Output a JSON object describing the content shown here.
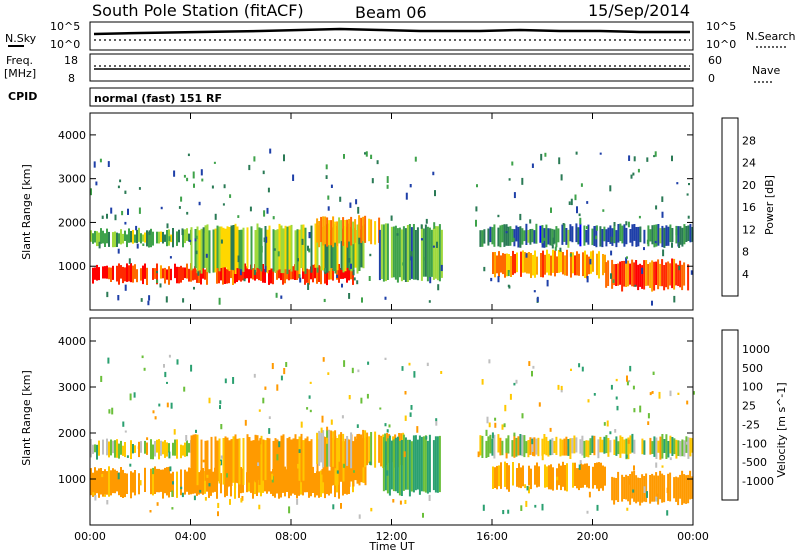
{
  "header": {
    "station": "South Pole Station (fitACF)",
    "beam": "Beam 06",
    "date": "15/Sep/2014"
  },
  "panels": {
    "nsky_label": "N.Sky",
    "nsky_ticks": [
      "10^5",
      "10^0"
    ],
    "nsearch_label": "N.Search",
    "nsearch_ticks": [
      "10^5",
      "10^0"
    ],
    "freq_label": "Freq.",
    "freq_unit": "[MHz]",
    "freq_ticks": [
      "18",
      "8"
    ],
    "nave_label": "Nave",
    "nave_ticks": [
      "60",
      "0"
    ],
    "cpid_label": "CPID",
    "cpid_text": "normal (fast) 151 RF"
  },
  "chart_data": [
    {
      "type": "heatmap",
      "name": "power",
      "ylabel": "Slant Range [km]",
      "xlabel": "",
      "ylim": [
        0,
        4500
      ],
      "yticks": [
        "4000",
        "3000",
        "2000",
        "1000"
      ],
      "colorbar": {
        "label": "Power [dB]",
        "ticks": [
          "28",
          "24",
          "20",
          "16",
          "12",
          "8",
          "4"
        ],
        "colors": [
          "#0000ff",
          "#1e3fa8",
          "#2a7a55",
          "#3ea24a",
          "#9fd93c",
          "#ffd700",
          "#ffa500",
          "#ff6a00",
          "#ff2a00",
          "#ff0000"
        ]
      },
      "bands": [
        {
          "x0": 0.0,
          "x1": 10.5,
          "y0": 650,
          "y1": 1000,
          "level": 27
        },
        {
          "x0": 0.0,
          "x1": 4.0,
          "y0": 1500,
          "y1": 1800,
          "level": 12
        },
        {
          "x0": 4.0,
          "x1": 11.0,
          "y0": 900,
          "y1": 1900,
          "level": 14
        },
        {
          "x0": 9.0,
          "x1": 11.5,
          "y0": 1500,
          "y1": 2100,
          "level": 20
        },
        {
          "x0": 11.5,
          "x1": 14.0,
          "y0": 700,
          "y1": 1900,
          "level": 10
        },
        {
          "x0": 15.5,
          "x1": 24.0,
          "y0": 1500,
          "y1": 1900,
          "level": 8
        },
        {
          "x0": 16.0,
          "x1": 20.5,
          "y0": 800,
          "y1": 1300,
          "level": 22
        },
        {
          "x0": 20.5,
          "x1": 24.0,
          "y0": 500,
          "y1": 1100,
          "level": 25
        }
      ]
    },
    {
      "type": "heatmap",
      "name": "velocity",
      "ylabel": "Slant Range [km]",
      "xlabel": "Time UT",
      "ylim": [
        0,
        4500
      ],
      "yticks": [
        "4000",
        "3000",
        "2000",
        "1000"
      ],
      "xticks": [
        "00:00",
        "04:00",
        "08:00",
        "12:00",
        "16:00",
        "20:00",
        "00:00"
      ],
      "colorbar": {
        "label": "Velocity [m s^-1]",
        "ticks": [
          "1000",
          "500",
          "100",
          "25",
          "-25",
          "-100",
          "-500",
          "-1000"
        ],
        "colors": [
          "#1f3fbf",
          "#1f78b4",
          "#2aa070",
          "#6abf3a",
          "#bfbfbf",
          "#ffc800",
          "#ff9a00",
          "#ff6a00",
          "#ff0000"
        ]
      },
      "bands": [
        {
          "x0": 0.0,
          "x1": 10.5,
          "y0": 650,
          "y1": 1200,
          "level": -200
        },
        {
          "x0": 0.0,
          "x1": 4.0,
          "y0": 1500,
          "y1": 1800,
          "level": 0
        },
        {
          "x0": 4.0,
          "x1": 11.0,
          "y0": 900,
          "y1": 1900,
          "level": -150
        },
        {
          "x0": 9.0,
          "x1": 12.5,
          "y0": 1300,
          "y1": 2000,
          "level": -80
        },
        {
          "x0": 11.5,
          "x1": 14.0,
          "y0": 700,
          "y1": 1900,
          "level": 150
        },
        {
          "x0": 15.5,
          "x1": 24.0,
          "y0": 1500,
          "y1": 1900,
          "level": 0
        },
        {
          "x0": 16.0,
          "x1": 20.5,
          "y0": 800,
          "y1": 1300,
          "level": -200
        },
        {
          "x0": 20.5,
          "x1": 24.0,
          "y0": 500,
          "y1": 1100,
          "level": -250
        }
      ]
    }
  ]
}
